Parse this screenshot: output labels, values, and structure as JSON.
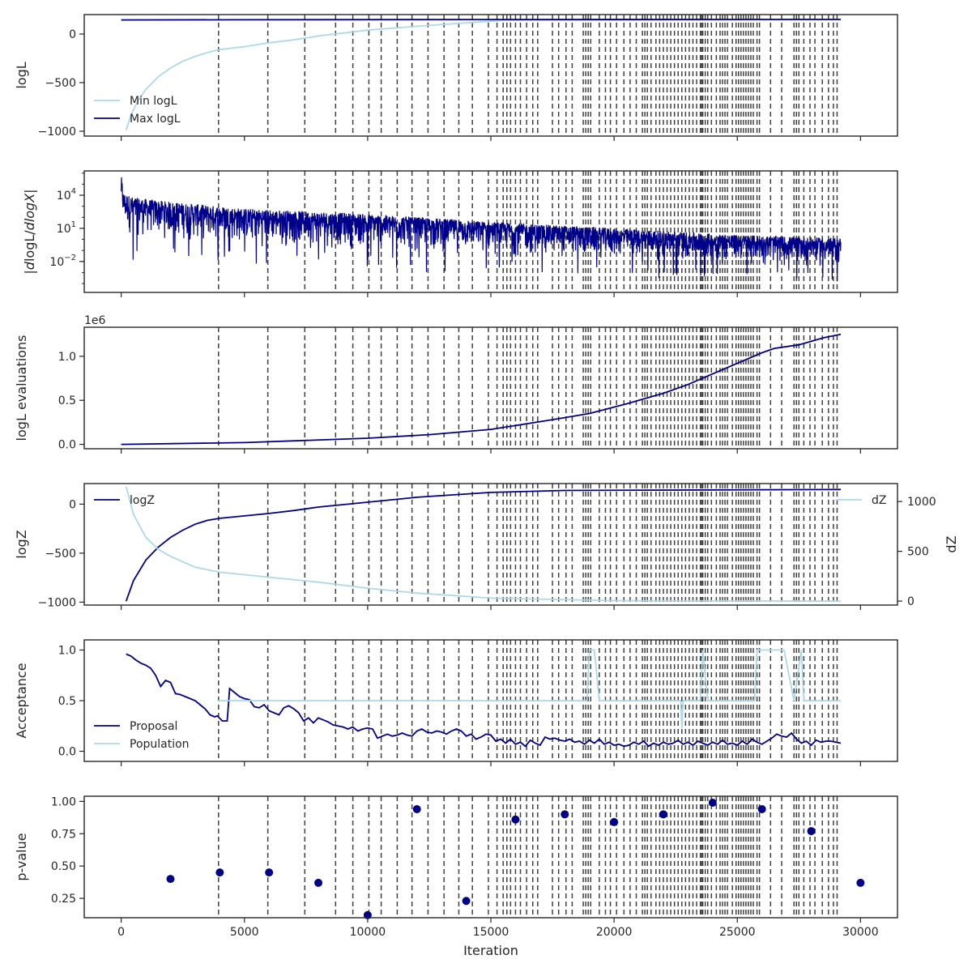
{
  "colors": {
    "dark": "#00008b",
    "light": "#add8e6",
    "vline": "#404040",
    "frame": "#262626"
  },
  "chart_data": {
    "type": "line",
    "shared_x": {
      "label": "Iteration",
      "range": [
        -1500,
        31500
      ],
      "ticks": [
        0,
        5000,
        10000,
        15000,
        20000,
        25000,
        30000
      ],
      "tick_labels": [
        "0",
        "5000",
        "10000",
        "15000",
        "20000",
        "25000",
        "30000"
      ]
    },
    "vertical_lines": [
      3950,
      5950,
      7450,
      8700,
      9400,
      10050,
      10550,
      11200,
      11800,
      12450,
      13100,
      13700,
      14250,
      14900,
      15250,
      15500,
      15650,
      15800,
      16000,
      16200,
      16450,
      16700,
      16900,
      17500,
      17750,
      18050,
      18300,
      18750,
      18850,
      18950,
      19050,
      19400,
      19650,
      19850,
      20100,
      20400,
      20650,
      20900,
      21150,
      21250,
      21350,
      21500,
      21700,
      21850,
      22000,
      22150,
      22300,
      22450,
      22600,
      22750,
      22900,
      23050,
      23200,
      23350,
      23500,
      23550,
      23600,
      23700,
      23800,
      23950,
      24150,
      24300,
      24400,
      24500,
      24600,
      24800,
      24950,
      25050,
      25150,
      25250,
      25350,
      25450,
      25550,
      25650,
      25800,
      25900,
      26350,
      26800,
      27300,
      27400,
      27500,
      27700,
      27950,
      28150,
      28450,
      28700,
      28900,
      29050
    ],
    "panels": [
      {
        "id": "logL",
        "ylabel": "logL",
        "yscale": "linear",
        "ylim": [
          -1050,
          200
        ],
        "yticks": [
          0,
          -500,
          -1000
        ],
        "ytick_labels": [
          "0",
          "−500",
          "−1000"
        ],
        "legend": "lower-left",
        "series": [
          {
            "name": "Min logL",
            "color": "light",
            "x": [
              200,
              400,
              700,
              1000,
              1500,
              2000,
              2500,
              3000,
              3500,
              4000,
              5000,
              6000,
              7000,
              8000,
              9000,
              10000,
              12000,
              14000,
              15500,
              29200
            ],
            "y": [
              -990,
              -830,
              -680,
              -570,
              -440,
              -350,
              -280,
              -230,
              -190,
              -160,
              -130,
              -90,
              -60,
              -20,
              10,
              40,
              80,
              115,
              140,
              150
            ]
          },
          {
            "name": "Max logL",
            "color": "dark",
            "x": [
              0,
              5000,
              15000,
              29200
            ],
            "y": [
              145,
              147,
              149,
              150
            ]
          }
        ]
      },
      {
        "id": "dlogL",
        "ylabel": "|dlogL/dlogX|",
        "ylabel_parts": [
          "|",
          "d",
          "logL/",
          "d",
          "logX",
          "|"
        ],
        "yscale": "log",
        "ylim_exp": [
          -4.8,
          6.2
        ],
        "yticks_exp": [
          4,
          1,
          -2
        ],
        "ytick_labels": [
          "10",
          "10",
          "10"
        ],
        "ytick_exps": [
          "4",
          "1",
          "−2"
        ],
        "envelope": {
          "x": [
            0,
            100,
            500,
            2000,
            5000,
            10000,
            15000,
            20000,
            25000,
            29200
          ],
          "upper_exp": [
            5.8,
            4.2,
            3.8,
            3.4,
            2.8,
            2.3,
            1.6,
            1.0,
            0.4,
            0.1
          ],
          "lower_exp": [
            1.5,
            0.3,
            -0.2,
            -0.5,
            -1.0,
            -1.3,
            -1.8,
            -2.2,
            -2.6,
            -2.9
          ],
          "deep_min_exp": -4.5
        },
        "series": [
          {
            "name": "",
            "color": "dark"
          }
        ]
      },
      {
        "id": "evals",
        "ylabel": "logL evaluations",
        "yscale": "linear",
        "offset_label": "1e6",
        "ylim": [
          -0.05,
          1.33
        ],
        "yticks": [
          0.0,
          0.5,
          1.0
        ],
        "ytick_labels": [
          "0.0",
          "0.5",
          "1.0"
        ],
        "series": [
          {
            "name": "",
            "color": "dark",
            "x": [
              0,
              5000,
              10000,
              12500,
              15000,
              17500,
              19000,
              20500,
              22000,
              23000,
              24000,
              25000,
              26000,
              26500,
              27500,
              28500,
              29200
            ],
            "y": [
              0.0,
              0.02,
              0.07,
              0.11,
              0.17,
              0.28,
              0.35,
              0.46,
              0.58,
              0.68,
              0.8,
              0.92,
              1.04,
              1.09,
              1.13,
              1.21,
              1.25
            ]
          }
        ]
      },
      {
        "id": "logZ",
        "ylabel": "logZ",
        "ylabel_right": "dZ",
        "yscale": "linear",
        "ylim": [
          -1030,
          210
        ],
        "yticks": [
          0,
          -500,
          -1000
        ],
        "ytick_labels": [
          "0",
          "−500",
          "−1000"
        ],
        "ylim_right": [
          -40,
          1180
        ],
        "yticks_right": [
          1000,
          500,
          0
        ],
        "ytick_labels_right": [
          "1000",
          "500",
          "0"
        ],
        "legend": "upper-left",
        "legend_right": "upper-right",
        "series": [
          {
            "name": "logZ",
            "color": "dark",
            "axis": "left",
            "x": [
              200,
              500,
              1000,
              1500,
              2000,
              2500,
              3000,
              3500,
              4000,
              5000,
              6000,
              7000,
              8000,
              10000,
              12000,
              15000,
              18000,
              29200
            ],
            "y": [
              -990,
              -780,
              -570,
              -440,
              -340,
              -265,
              -205,
              -165,
              -145,
              -120,
              -95,
              -65,
              -30,
              20,
              70,
              120,
              140,
              150
            ]
          },
          {
            "name": "dZ",
            "color": "light",
            "axis": "right",
            "x": [
              200,
              500,
              1000,
              1500,
              2000,
              3000,
              4000,
              6000,
              8000,
              10000,
              12000,
              15000,
              20000,
              29200
            ],
            "y": [
              1150,
              870,
              640,
              520,
              450,
              340,
              290,
              240,
              190,
              130,
              80,
              30,
              5,
              0
            ]
          }
        ]
      },
      {
        "id": "acceptance",
        "ylabel": "Acceptance",
        "yscale": "linear",
        "ylim": [
          -0.1,
          1.1
        ],
        "yticks": [
          0.0,
          0.5,
          1.0
        ],
        "ytick_labels": [
          "0.0",
          "0.5",
          "1.0"
        ],
        "legend": "lower-left",
        "series": [
          {
            "name": "Proposal",
            "color": "dark",
            "x": [
              200,
              400,
              600,
              800,
              1000,
              1200,
              1400,
              1600,
              1800,
              2000,
              2200,
              2400,
              2600,
              2800,
              3000,
              3200,
              3400,
              3600,
              3800,
              3900,
              4100,
              4300,
              4400,
              4600,
              4800,
              5000,
              5200,
              5400,
              5600,
              5800,
              6000,
              6200,
              6400,
              6600,
              6800,
              7000,
              7200,
              7400,
              7600,
              7800,
              8000,
              8200,
              8400,
              8600,
              8800,
              9000,
              9200,
              9400,
              9600,
              9800,
              10000,
              10200,
              10400,
              10600,
              10800,
              11000,
              11200,
              11400,
              11600,
              11800,
              12000,
              12200,
              12400,
              12600,
              12800,
              13000,
              13200,
              13400,
              13600,
              13800,
              14000,
              14200,
              14400,
              14600,
              14800,
              15000,
              15200,
              15400,
              15600,
              15800,
              16000,
              16200,
              16400,
              16600,
              16800,
              17000,
              17200,
              17400,
              17600,
              17800,
              18000,
              18200,
              18400,
              18600,
              18800,
              19000,
              19200,
              19400,
              19600,
              19800,
              20000,
              20200,
              20400,
              20600,
              20800,
              21000,
              21200,
              21400,
              21600,
              21800,
              22000,
              22200,
              22400,
              22600,
              22800,
              23000,
              23200,
              23400,
              23600,
              23800,
              24000,
              24200,
              24400,
              24600,
              24800,
              25000,
              25200,
              25400,
              25600,
              25800,
              26000,
              26200,
              26400,
              26600,
              26800,
              27000,
              27200,
              27400,
              27600,
              27800,
              28000,
              28200,
              28400,
              28600,
              28800,
              29000,
              29200
            ],
            "y": [
              0.96,
              0.94,
              0.9,
              0.87,
              0.85,
              0.82,
              0.75,
              0.64,
              0.7,
              0.68,
              0.57,
              0.56,
              0.54,
              0.52,
              0.5,
              0.46,
              0.42,
              0.36,
              0.34,
              0.35,
              0.3,
              0.3,
              0.62,
              0.58,
              0.54,
              0.52,
              0.51,
              0.44,
              0.43,
              0.46,
              0.4,
              0.38,
              0.36,
              0.43,
              0.45,
              0.42,
              0.38,
              0.3,
              0.33,
              0.28,
              0.33,
              0.31,
              0.29,
              0.26,
              0.25,
              0.24,
              0.22,
              0.24,
              0.2,
              0.22,
              0.23,
              0.22,
              0.13,
              0.15,
              0.17,
              0.15,
              0.16,
              0.18,
              0.16,
              0.15,
              0.2,
              0.22,
              0.19,
              0.18,
              0.2,
              0.19,
              0.17,
              0.2,
              0.22,
              0.2,
              0.15,
              0.17,
              0.12,
              0.14,
              0.17,
              0.16,
              0.1,
              0.12,
              0.08,
              0.12,
              0.07,
              0.09,
              0.05,
              0.11,
              0.08,
              0.06,
              0.14,
              0.12,
              0.13,
              0.11,
              0.1,
              0.12,
              0.09,
              0.1,
              0.07,
              0.11,
              0.08,
              0.12,
              0.07,
              0.09,
              0.06,
              0.07,
              0.05,
              0.06,
              0.09,
              0.07,
              0.1,
              0.05,
              0.08,
              0.06,
              0.09,
              0.07,
              0.08,
              0.11,
              0.07,
              0.09,
              0.06,
              0.1,
              0.08,
              0.06,
              0.09,
              0.07,
              0.11,
              0.07,
              0.08,
              0.06,
              0.1,
              0.07,
              0.12,
              0.09,
              0.07,
              0.1,
              0.13,
              0.17,
              0.15,
              0.14,
              0.18,
              0.12,
              0.08,
              0.1,
              0.06,
              0.11,
              0.09,
              0.1,
              0.1,
              0.09,
              0.08
            ]
          },
          {
            "name": "Population",
            "color": "light",
            "x": [
              3900,
              4100,
              18900,
              19000,
              19200,
              19400,
              22700,
              22750,
              22800,
              23500,
              23600,
              23800,
              25700,
              25800,
              26900,
              27300,
              27600,
              27700,
              29200
            ],
            "y": [
              0.5,
              0.5,
              0.5,
              1.0,
              1.0,
              0.5,
              0.5,
              0.23,
              0.5,
              0.5,
              1.0,
              0.5,
              0.5,
              1.0,
              1.0,
              0.5,
              1.0,
              0.5,
              0.5
            ]
          }
        ]
      },
      {
        "id": "pvalue",
        "ylabel": "p-value",
        "yscale": "linear",
        "type": "scatter",
        "ylim": [
          0.1,
          1.04
        ],
        "yticks": [
          0.25,
          0.5,
          0.75,
          1.0
        ],
        "ytick_labels": [
          "0.25",
          "0.50",
          "0.75",
          "1.00"
        ],
        "series": [
          {
            "name": "",
            "color": "dark",
            "x": [
              2000,
              4000,
              6000,
              8000,
              10000,
              12000,
              14000,
              16000,
              18000,
              20000,
              22000,
              24000,
              26000,
              28000,
              30000
            ],
            "y": [
              0.4,
              0.45,
              0.45,
              0.37,
              0.12,
              0.94,
              0.23,
              0.86,
              0.9,
              0.84,
              0.9,
              0.99,
              0.94,
              0.77,
              0.37
            ]
          }
        ]
      }
    ]
  }
}
